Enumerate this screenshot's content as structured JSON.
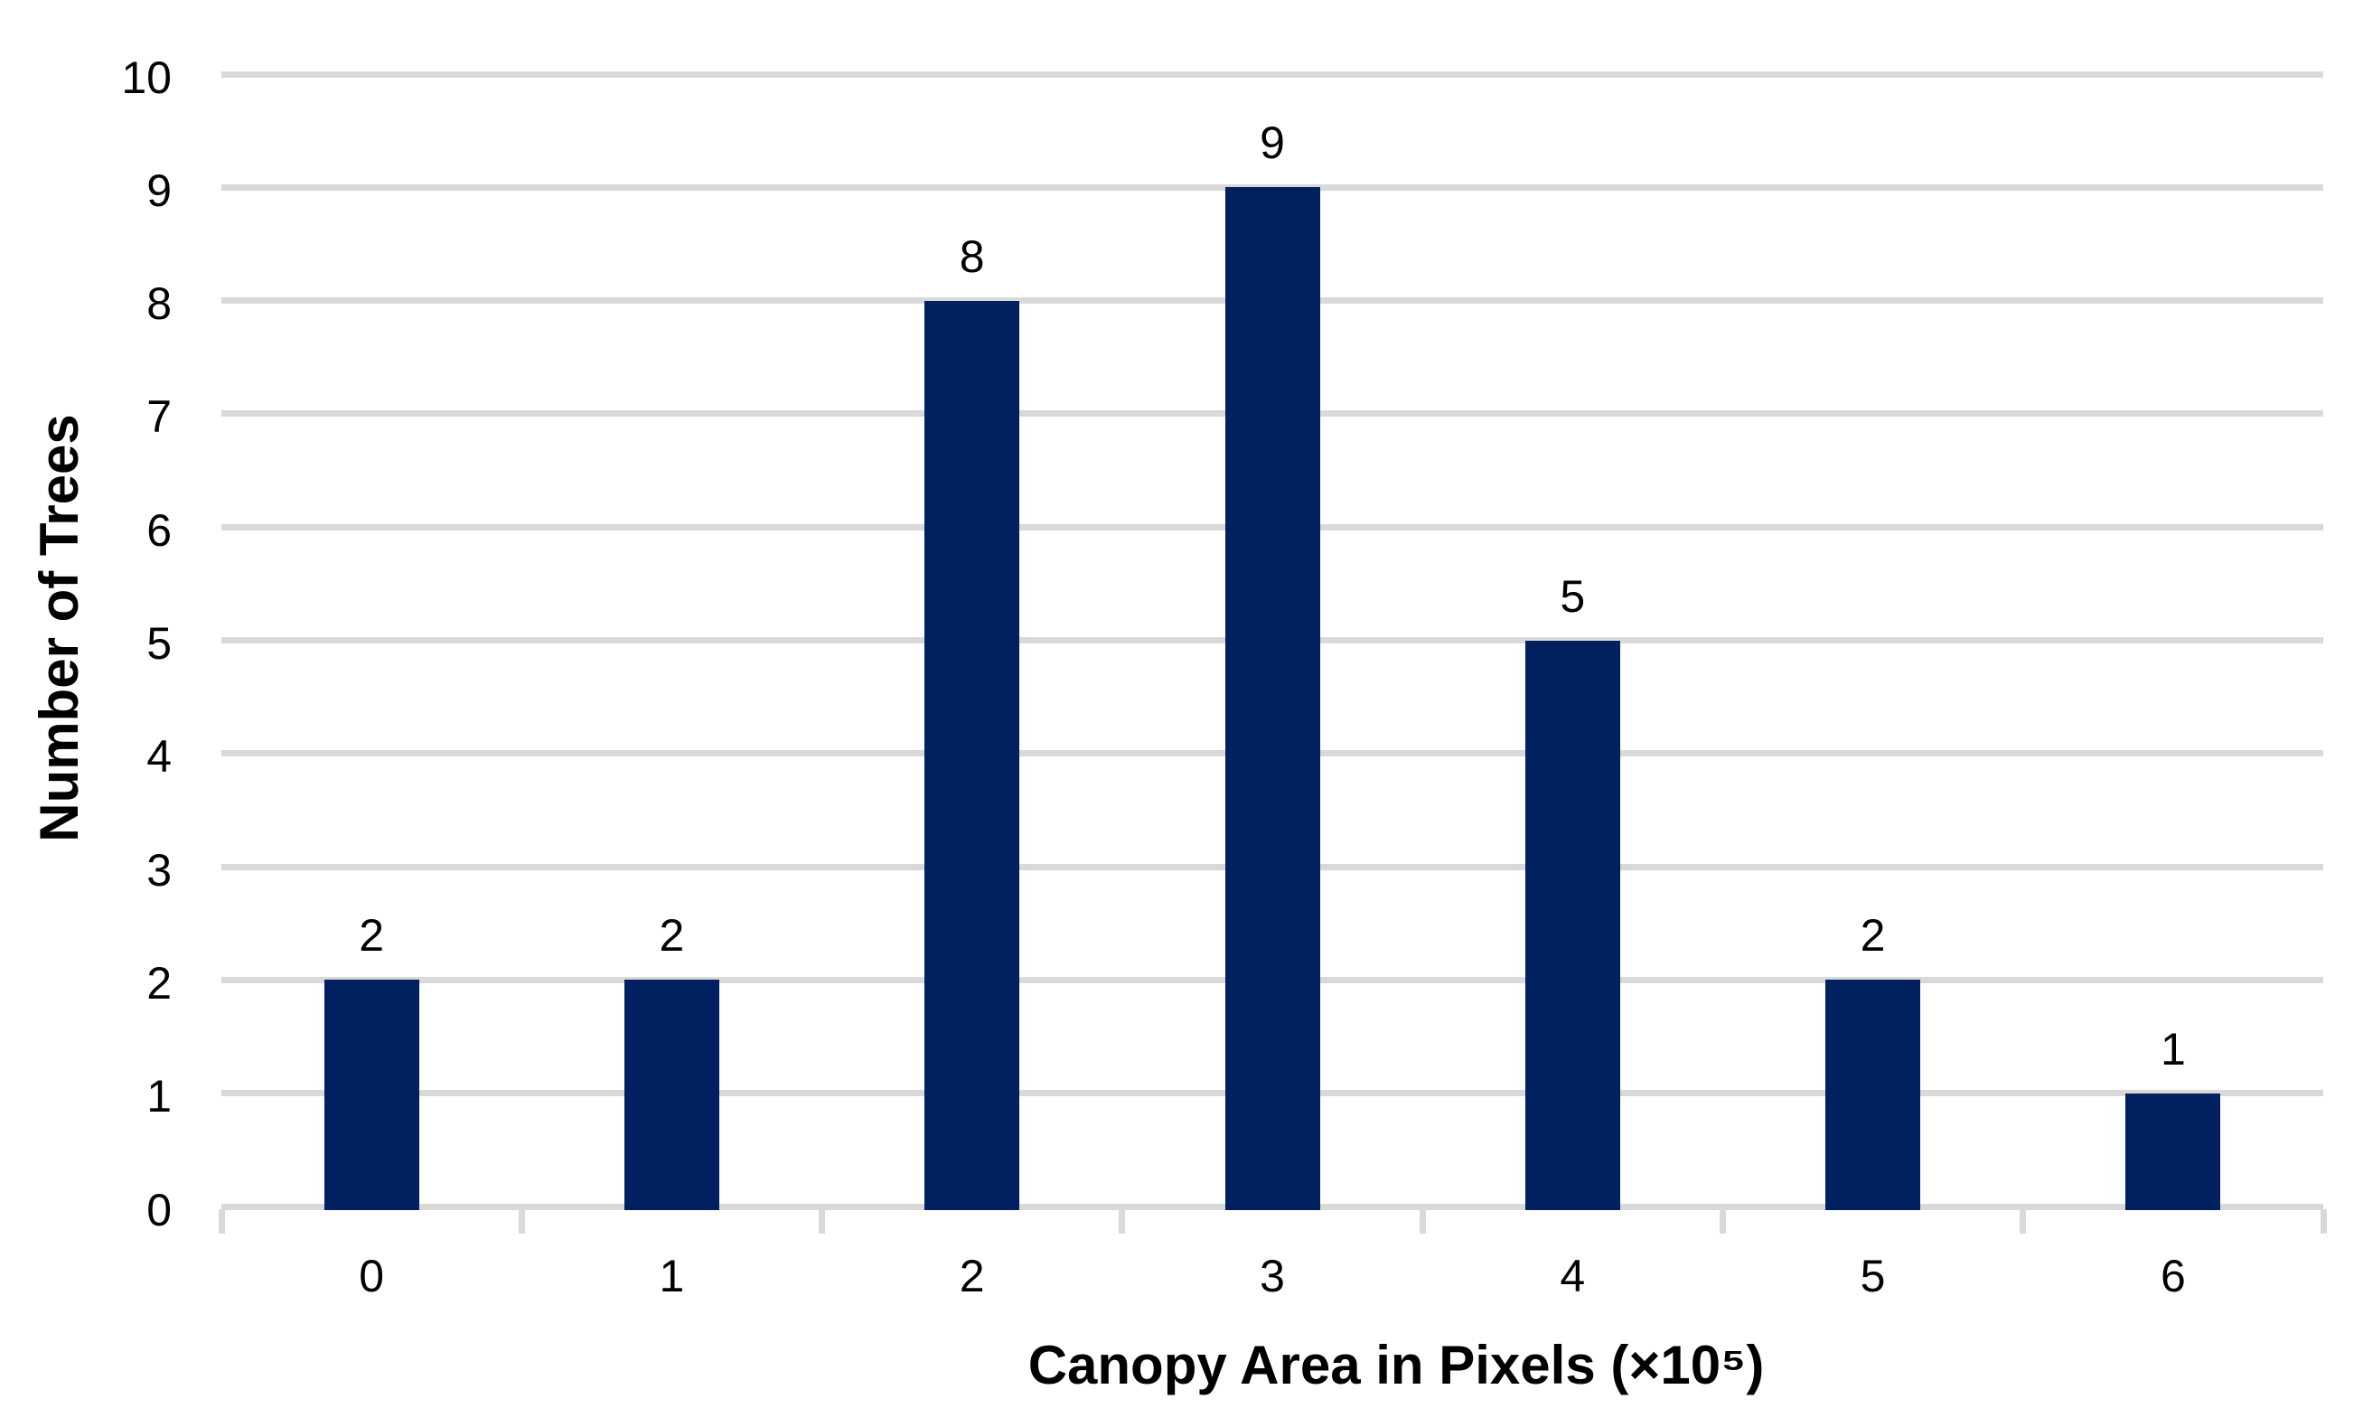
{
  "chart_data": {
    "type": "bar",
    "title": "",
    "categories": [
      "0",
      "1",
      "2",
      "3",
      "4",
      "5",
      "6"
    ],
    "values": [
      2,
      2,
      8,
      9,
      5,
      2,
      1
    ],
    "data_labels": [
      "2",
      "2",
      "8",
      "9",
      "5",
      "2",
      "1"
    ],
    "xlabel": "Canopy Area in Pixels (×10⁵)",
    "ylabel": "Number of Trees",
    "ylim": [
      0,
      10
    ],
    "yticks": [
      "0",
      "1",
      "2",
      "3",
      "4",
      "5",
      "6",
      "7",
      "8",
      "9",
      "10"
    ],
    "grid": true,
    "legend": "none",
    "layout_hints": {
      "bar_gap": "wide",
      "data_labels_position": "above-bar",
      "gridlines": "horizontal-major"
    },
    "colors": {
      "bar": "#002060",
      "gridline": "#D9D9D9",
      "axis_line": "#D9D9D9",
      "text": "#000000",
      "background": "#FFFFFF"
    }
  }
}
